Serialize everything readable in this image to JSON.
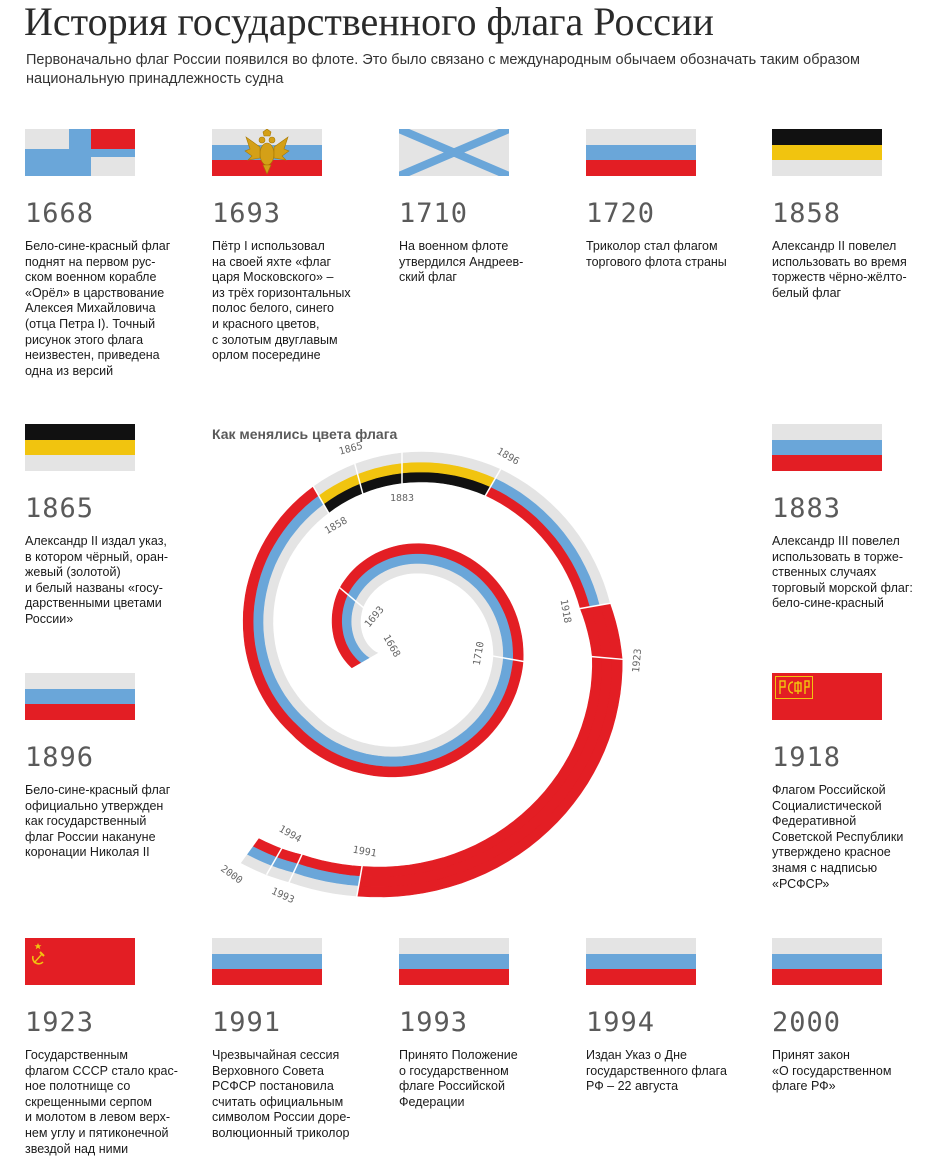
{
  "header": {
    "title": "История государственного флага России",
    "subtitle": "Первоначально флаг России появился во флоте. Это было связано с международным обычаем обозначать таким образом национальную принадлежность судна"
  },
  "spiral": {
    "title": "Как менялись цвета флага",
    "year_labels": [
      "1668",
      "1693",
      "1710",
      "1858",
      "1865",
      "1883",
      "1896",
      "1918",
      "1923",
      "1991",
      "1993",
      "1994",
      "2000"
    ]
  },
  "colors": {
    "white": "#e4e4e4",
    "blue": "#6aa6d9",
    "red": "#e31e24",
    "black": "#111111",
    "gold": "#f1c40f"
  },
  "entries": [
    {
      "year": "1668",
      "flag": "orel-flag-icon",
      "desc": "Бело-сине-красный флаг\nподнят на первом рус-\nском военном корабле\n«Орёл» в царствование\nАлексея Михайловича\n(отца Петра I). Точный\nрисунок этого флага\nнеизвестен, приведена\nодна из версий"
    },
    {
      "year": "1693",
      "flag": "tsar-moscow-flag-icon",
      "desc": "Пётр I использовал\nна своей яхте «флаг\nцаря Московского» –\nиз трёх горизонтальных\nполос белого, синего\nи красного цветов,\nс золотым двуглавым\nорлом посередине"
    },
    {
      "year": "1710",
      "flag": "st-andrew-flag-icon",
      "desc": "На военном флоте\nутвердился Андреев-\nский флаг"
    },
    {
      "year": "1720",
      "flag": "tricolor-flag-icon",
      "desc": "Триколор стал флагом\nторгового флота страны"
    },
    {
      "year": "1858",
      "flag": "imperial-flag-icon",
      "desc": "Александр II повелел\nиспользовать во время\nторжеств чёрно-жёлто-\nбелый флаг"
    },
    {
      "year": "1865",
      "flag": "imperial-flag-icon",
      "desc": "Александр II издал указ,\nв котором чёрный, оран-\nжевый (золотой)\nи белый названы «госу-\nдарственными цветами\nРоссии»"
    },
    {
      "year": "1883",
      "flag": "tricolor-flag-icon",
      "desc": "Александр III повелел\nиспользовать в торже-\nственных случаях\nторговый морской флаг:\nбело-сине-красный"
    },
    {
      "year": "1896",
      "flag": "tricolor-flag-icon",
      "desc": "Бело-сине-красный флаг\nофициально утвержден\nкак государственный\nфлаг России накануне\nкоронации Николая II"
    },
    {
      "year": "1918",
      "flag": "rsfsr-flag-icon",
      "desc": "Флагом Российской\nСоциалистической\nФедеративной\nСоветской Республики\nутверждено красное\nзнамя с надписью\n«РСФСР»"
    },
    {
      "year": "1923",
      "flag": "ussr-flag-icon",
      "desc": "Государственным\nфлагом СССР стало крас-\nное полотнище со\nскрещенными серпом\nи молотом в левом верх-\nнем углу и пятиконечной\nзвездой над ними"
    },
    {
      "year": "1991",
      "flag": "tricolor-flag-icon",
      "desc": "Чрезвычайная сессия\nВерховного Совета\nРСФСР постановила\nсчитать официальным\nсимволом России доре-\nволюционный триколор"
    },
    {
      "year": "1993",
      "flag": "tricolor-flag-icon",
      "desc": "Принято Положение\nо государственном\nфлаге Российской\nФедерации"
    },
    {
      "year": "1994",
      "flag": "tricolor-flag-icon",
      "desc": "Издан Указ о Дне\nгосударственного флага\nРФ – 22 августа"
    },
    {
      "year": "2000",
      "flag": "tricolor-flag-icon",
      "desc": "Принят закон\n«О государственном\nфлаге РФ»"
    }
  ]
}
